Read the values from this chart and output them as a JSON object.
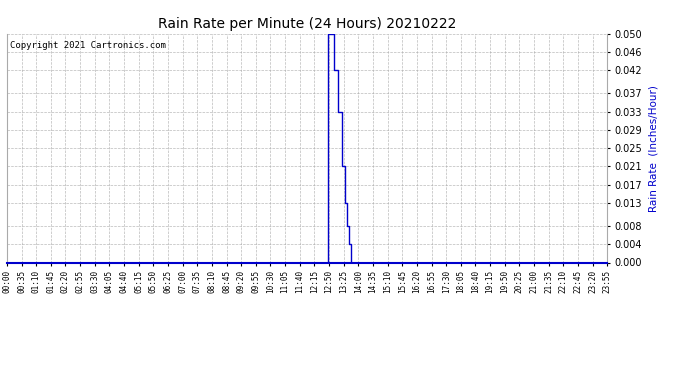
{
  "title": "Rain Rate per Minute (24 Hours) 20210222",
  "ylabel": "Rain Rate  (Inches/Hour)",
  "copyright": "Copyright 2021 Cartronics.com",
  "bg_color": "#ffffff",
  "plot_bg_color": "#ffffff",
  "line_color": "#0000cc",
  "ylabel_color": "#0000cc",
  "copyright_color": "#000000",
  "title_color": "#000000",
  "ylim": [
    0.0,
    0.05
  ],
  "yticks": [
    0.0,
    0.004,
    0.008,
    0.013,
    0.017,
    0.021,
    0.025,
    0.029,
    0.033,
    0.037,
    0.042,
    0.046,
    0.05
  ],
  "xtick_labels": [
    "00:00",
    "00:35",
    "01:10",
    "01:45",
    "02:20",
    "02:55",
    "03:30",
    "04:05",
    "04:40",
    "05:15",
    "05:50",
    "06:25",
    "07:00",
    "07:35",
    "08:10",
    "08:45",
    "09:20",
    "09:55",
    "10:30",
    "11:05",
    "11:40",
    "12:15",
    "12:50",
    "13:25",
    "14:00",
    "14:35",
    "15:10",
    "15:45",
    "16:20",
    "16:55",
    "17:30",
    "18:05",
    "18:40",
    "19:15",
    "19:50",
    "20:25",
    "21:00",
    "21:35",
    "22:10",
    "22:45",
    "23:20",
    "23:55"
  ],
  "spike_data": [
    [
      0,
      0.0
    ],
    [
      12.833,
      0.0
    ],
    [
      12.833,
      0.05
    ],
    [
      13.083,
      0.05
    ],
    [
      13.083,
      0.042
    ],
    [
      13.25,
      0.042
    ],
    [
      13.25,
      0.033
    ],
    [
      13.417,
      0.033
    ],
    [
      13.417,
      0.021
    ],
    [
      13.5,
      0.021
    ],
    [
      13.5,
      0.013
    ],
    [
      13.583,
      0.013
    ],
    [
      13.583,
      0.008
    ],
    [
      13.667,
      0.008
    ],
    [
      13.667,
      0.004
    ],
    [
      13.75,
      0.004
    ],
    [
      13.75,
      0.0
    ],
    [
      24,
      0.0
    ]
  ]
}
